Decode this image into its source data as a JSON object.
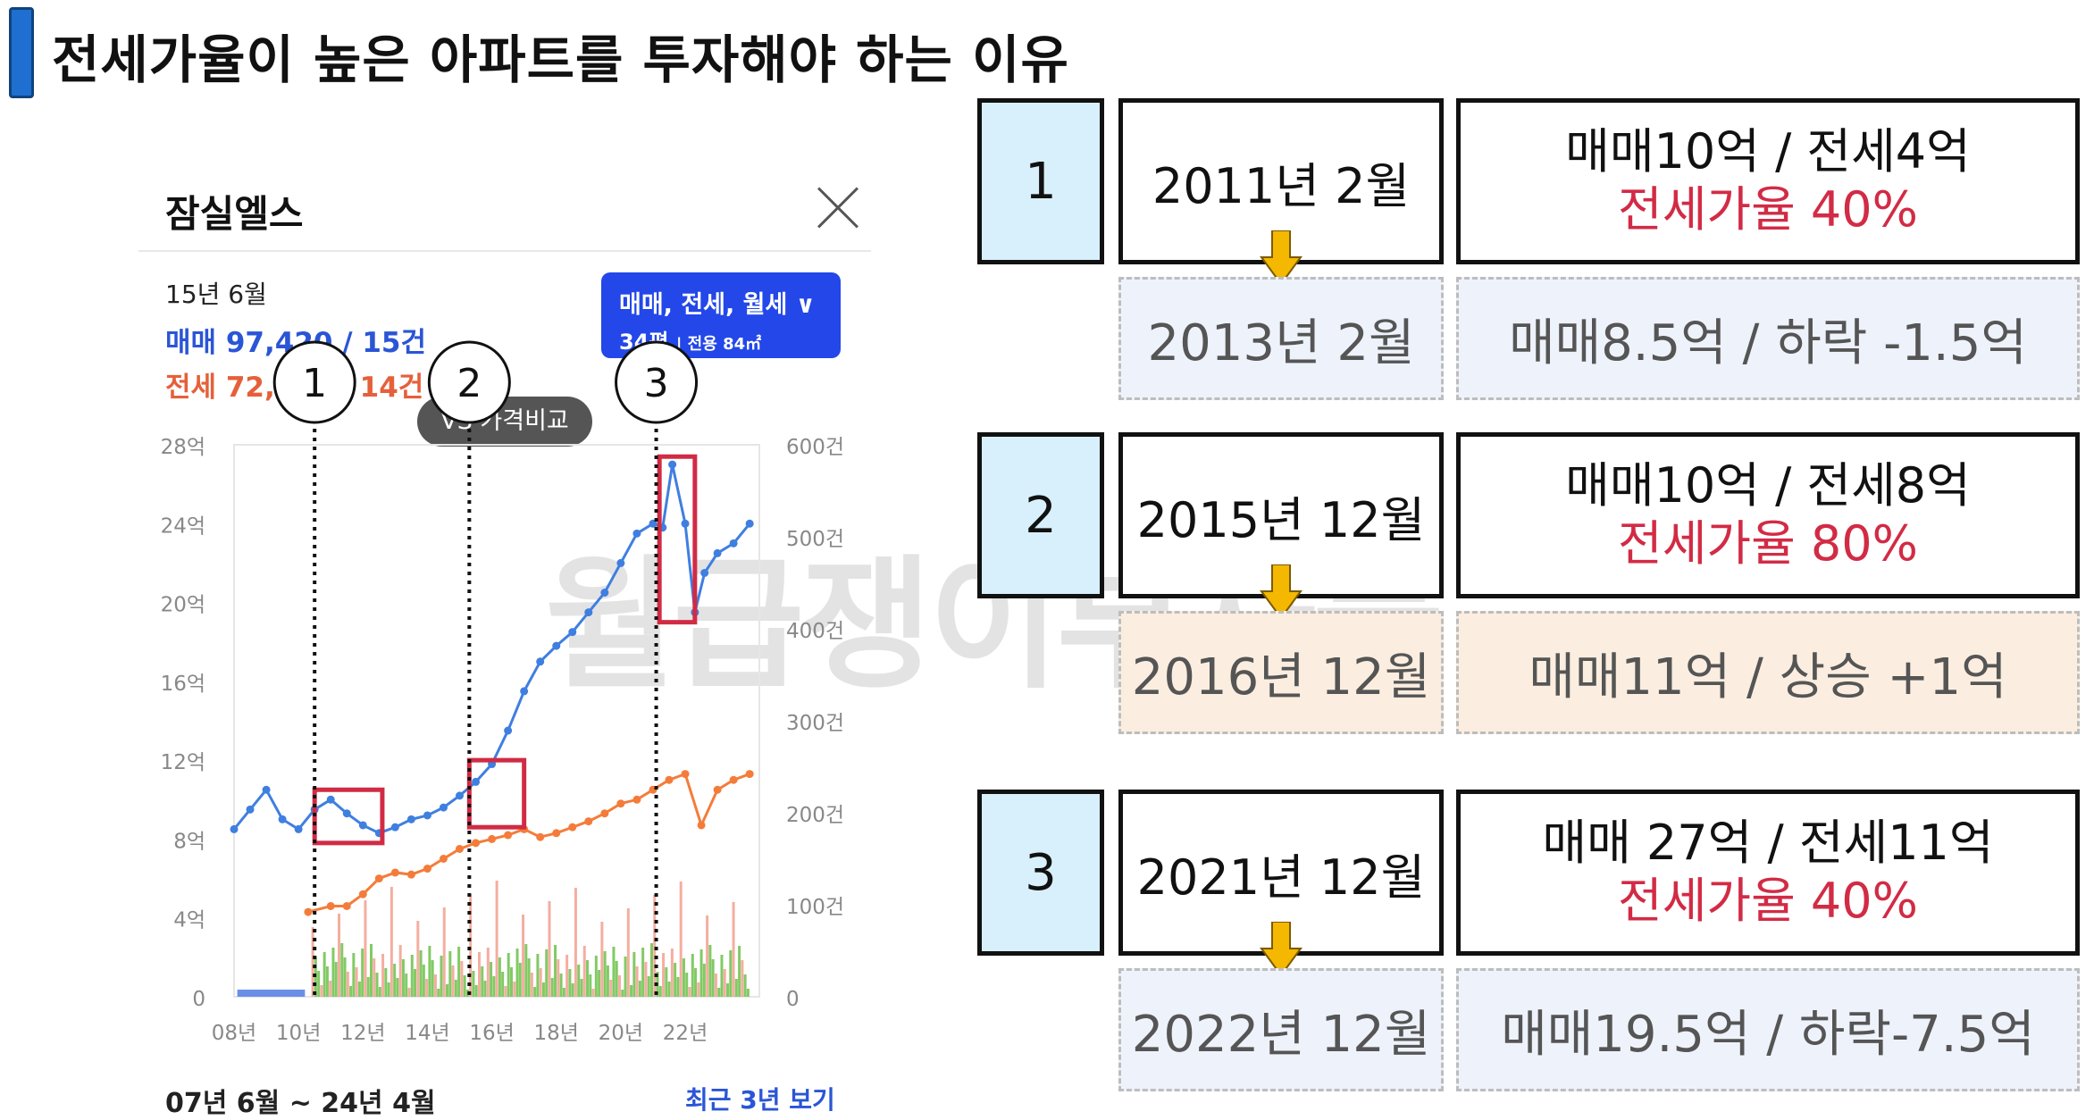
{
  "title": "전세가율이 높은 아파트를 투자해야 하는 이유",
  "watermark": "월급쟁이부자들",
  "card": {
    "title": "잠실엘스",
    "date": "15년 6월",
    "sale_text": "매매 97,420 / 15건",
    "jeonse_text": "전세 72,…… / 14건",
    "filter_line1": "매매, 전세, 월세 ∨",
    "filter_size": "34평",
    "filter_area": "| 전용 84㎡",
    "compare_label": "VS 가격비교",
    "range_text": "07년 6월 ~ 24년 4월",
    "recent_link": "최근 3년 보기"
  },
  "colors": {
    "sale": "#3f7fe0",
    "jeonse": "#f47c3a",
    "highlight": "#d12b44",
    "accent": "#1f6fd1"
  },
  "chart_data": {
    "type": "line",
    "y_left_ticks": [
      "0",
      "4억",
      "8억",
      "12억",
      "16억",
      "20억",
      "24억",
      "28억"
    ],
    "y_right_ticks": [
      "0",
      "100건",
      "200건",
      "300건",
      "400건",
      "500건",
      "600건"
    ],
    "x_ticks": [
      "08년",
      "10년",
      "12년",
      "14년",
      "16년",
      "18년",
      "20년",
      "22년"
    ],
    "ylim": [
      0,
      28
    ],
    "xlim": [
      2008,
      2024.3
    ],
    "series": [
      {
        "name": "매매",
        "x": [
          2008.0,
          2008.5,
          2009.0,
          2009.5,
          2010.0,
          2010.5,
          2011.0,
          2011.5,
          2012.0,
          2012.5,
          2013.0,
          2013.5,
          2014.0,
          2014.5,
          2015.0,
          2015.5,
          2016.0,
          2016.5,
          2017.0,
          2017.5,
          2018.0,
          2018.5,
          2019.0,
          2019.5,
          2020.0,
          2020.5,
          2021.0,
          2021.3,
          2021.6,
          2022.0,
          2022.3,
          2022.6,
          2023.0,
          2023.5,
          2024.0
        ],
        "values": [
          8.5,
          9.5,
          10.5,
          9.0,
          8.5,
          9.5,
          10.0,
          9.3,
          8.7,
          8.3,
          8.6,
          9.0,
          9.2,
          9.6,
          10.2,
          10.9,
          11.8,
          13.5,
          15.5,
          17.0,
          17.8,
          18.5,
          19.5,
          20.5,
          22.0,
          23.5,
          24.0,
          23.8,
          27.0,
          24.0,
          19.5,
          21.5,
          22.5,
          23.0,
          24.0
        ]
      },
      {
        "name": "전세",
        "x": [
          2010.3,
          2011.0,
          2011.5,
          2012.0,
          2012.5,
          2013.0,
          2013.5,
          2014.0,
          2014.5,
          2015.0,
          2015.5,
          2016.0,
          2016.5,
          2017.0,
          2017.5,
          2018.0,
          2018.5,
          2019.0,
          2019.5,
          2020.0,
          2020.5,
          2021.0,
          2021.5,
          2022.0,
          2022.5,
          2023.0,
          2023.5,
          2024.0
        ],
        "values": [
          4.3,
          4.6,
          4.6,
          5.2,
          6.0,
          6.3,
          6.2,
          6.5,
          7.0,
          7.5,
          7.8,
          8.0,
          8.2,
          8.5,
          8.1,
          8.3,
          8.6,
          8.9,
          9.3,
          9.8,
          10.0,
          10.5,
          11.0,
          11.3,
          8.7,
          10.5,
          11.0,
          11.3
        ]
      }
    ],
    "markers": [
      {
        "label": "1",
        "x": 2010.5
      },
      {
        "label": "2",
        "x": 2015.3
      },
      {
        "label": "3",
        "x": 2021.1
      }
    ]
  },
  "table": {
    "rows": [
      {
        "num": "1",
        "date": "2011년 2월",
        "price": "매매10억 / 전세4억",
        "ratio": "전세가율 40%",
        "sub_date": "2013년 2월",
        "sub_price": "매매8.5억 / 하락 -1.5억"
      },
      {
        "num": "2",
        "date": "2015년 12월",
        "price": "매매10억 / 전세8억",
        "ratio": "전세가율 80%",
        "sub_date": "2016년 12월",
        "sub_price": "매매11억 / 상승 +1억"
      },
      {
        "num": "3",
        "date": "2021년 12월",
        "price": "매매 27억 / 전세11억",
        "ratio": "전세가율 40%",
        "sub_date": "2022년 12월",
        "sub_price": "매매19.5억 / 하락-7.5억"
      }
    ]
  }
}
